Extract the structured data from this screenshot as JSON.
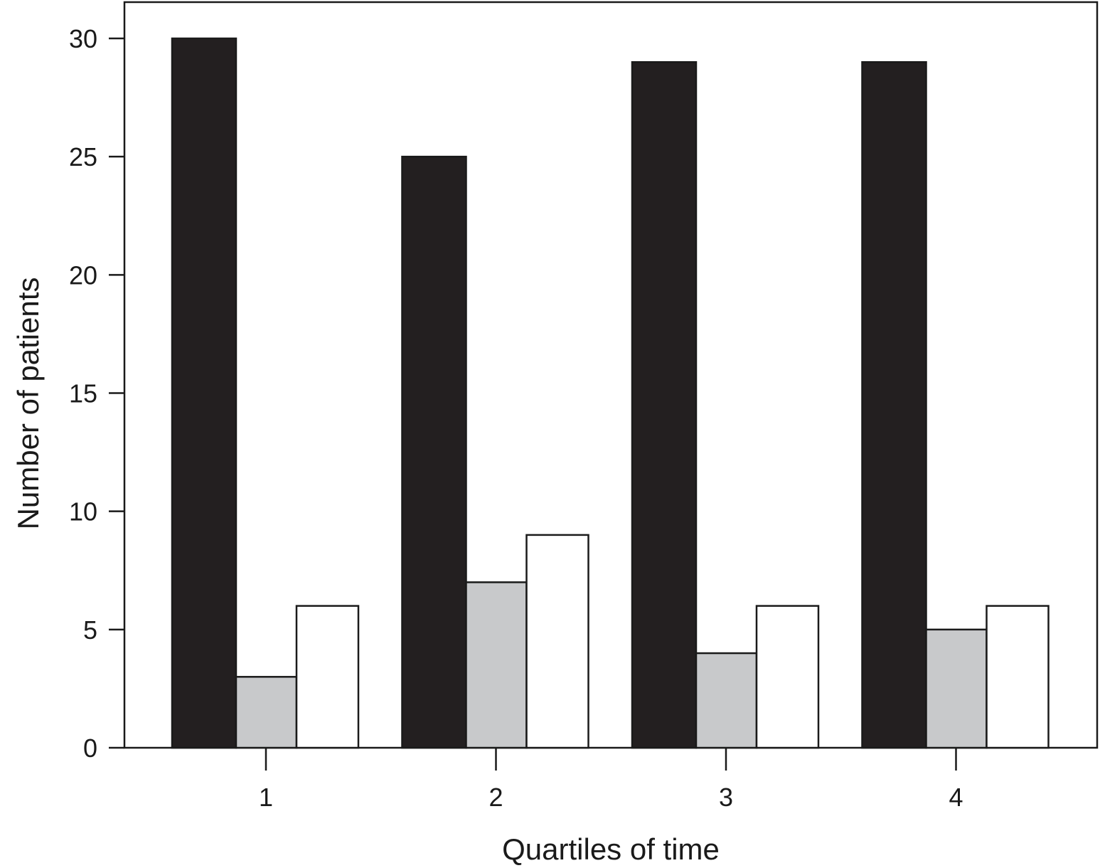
{
  "chart_data": {
    "type": "bar",
    "title": "",
    "xlabel": "Quartiles of time",
    "ylabel": "Number of patients",
    "categories": [
      "1",
      "2",
      "3",
      "4"
    ],
    "series": [
      {
        "values": [
          30,
          25,
          29,
          29
        ],
        "color": "#231f20"
      },
      {
        "values": [
          3,
          7,
          4,
          5
        ],
        "color": "#c8c9cb"
      },
      {
        "values": [
          6,
          9,
          6,
          6
        ],
        "color": "#ffffff"
      }
    ],
    "ylim": [
      0,
      30
    ],
    "yticks": [
      0,
      5,
      10,
      15,
      20,
      25,
      30
    ],
    "grid": false,
    "legend": "none"
  }
}
